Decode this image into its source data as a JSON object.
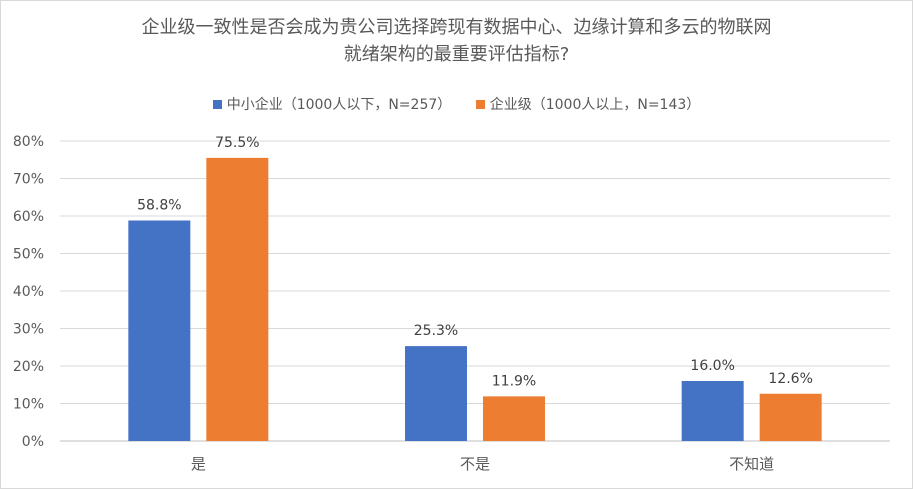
{
  "chart_data": {
    "type": "bar",
    "title_line1": "企业级一致性是否会成为贵公司选择跨现有数据中心、边缘计算和多云的物联网",
    "title_line2": "就绪架构的最重要评估指标?",
    "categories": [
      "是",
      "不是",
      "不知道"
    ],
    "series": [
      {
        "name": "中小企业（1000人以下，N=257）",
        "color": "#4472C4",
        "values": [
          58.8,
          25.3,
          16.0
        ]
      },
      {
        "name": "企业级（1000人以上，N=143）",
        "color": "#ED7D31",
        "values": [
          75.5,
          11.9,
          12.6
        ]
      }
    ],
    "y_ticks": [
      "0%",
      "10%",
      "20%",
      "30%",
      "40%",
      "50%",
      "60%",
      "70%",
      "80%"
    ],
    "ylim": [
      0,
      80
    ],
    "value_suffix": "%",
    "grid": true,
    "legend_position": "top"
  }
}
